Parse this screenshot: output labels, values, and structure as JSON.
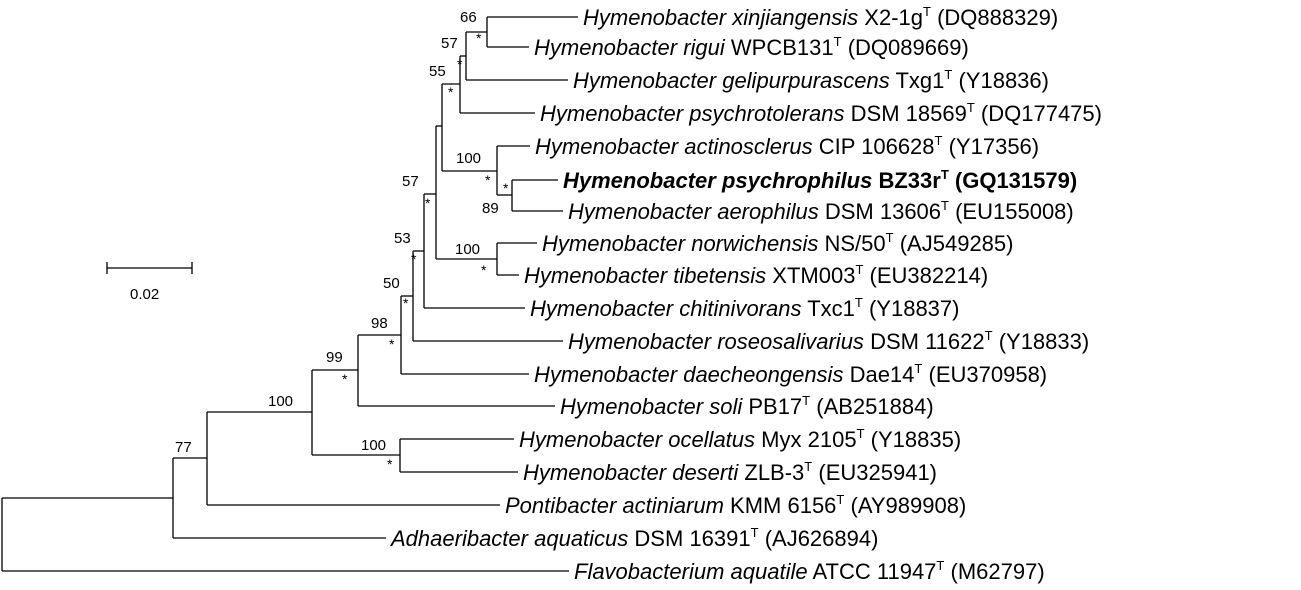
{
  "scale_bar": {
    "label": "0.02"
  },
  "tips": [
    {
      "genus": "Hymenobacter",
      "species": "xinjiangensis",
      "strain": "X2-1g",
      "type_mark": "T",
      "accession": "(DQ888329)"
    },
    {
      "genus": "Hymenobacter",
      "species": "rigui",
      "strain": "WPCB131",
      "type_mark": "T",
      "accession": "(DQ089669)"
    },
    {
      "genus": "Hymenobacter",
      "species": "gelipurpurascens",
      "strain": "Txg1",
      "type_mark": "T",
      "accession": "(Y18836)"
    },
    {
      "genus": "Hymenobacter",
      "species": "psychrotolerans",
      "strain": "DSM 18569",
      "type_mark": "T",
      "accession": "(DQ177475)"
    },
    {
      "genus": "Hymenobacter",
      "species": "actinosclerus",
      "strain": "CIP 106628",
      "type_mark": "T",
      "accession": "(Y17356)"
    },
    {
      "genus": "Hymenobacter",
      "species": "psychrophilus",
      "strain": "BZ33r",
      "type_mark": "T",
      "accession": "(GQ131579)",
      "bold": true
    },
    {
      "genus": "Hymenobacter",
      "species": "aerophilus",
      "strain": "DSM 13606",
      "type_mark": "T",
      "accession": "(EU155008)"
    },
    {
      "genus": "Hymenobacter",
      "species": "norwichensis",
      "strain": "NS/50",
      "type_mark": "T",
      "accession": "(AJ549285)"
    },
    {
      "genus": "Hymenobacter",
      "species": "tibetensis",
      "strain": "XTM003",
      "type_mark": "T",
      "accession": "(EU382214)"
    },
    {
      "genus": "Hymenobacter",
      "species": "chitinivorans",
      "strain": "Txc1",
      "type_mark": "T",
      "accession": "(Y18837)"
    },
    {
      "genus": "Hymenobacter",
      "species": "roseosalivarius",
      "strain": "DSM 11622",
      "type_mark": "T",
      "accession": "(Y18833)"
    },
    {
      "genus": "Hymenobacter",
      "species": "daecheongensis",
      "strain": "Dae14",
      "type_mark": "T",
      "accession": "(EU370958)"
    },
    {
      "genus": "Hymenobacter",
      "species": "soli",
      "strain": "PB17",
      "type_mark": "T",
      "accession": "(AB251884)"
    },
    {
      "genus": "Hymenobacter",
      "species": "ocellatus",
      "strain": "Myx 2105",
      "type_mark": "T",
      "accession": "(Y18835)"
    },
    {
      "genus": "Hymenobacter",
      "species": "deserti",
      "strain": "ZLB-3",
      "type_mark": "T",
      "accession": "(EU325941)"
    },
    {
      "genus": "Pontibacter",
      "species": "actiniarum",
      "strain": "KMM 6156",
      "type_mark": "T",
      "accession": "(AY989908)"
    },
    {
      "genus": "Adhaeribacter",
      "species": "aquaticus",
      "strain": "DSM 16391",
      "type_mark": "T",
      "accession": "(AJ626894)"
    },
    {
      "genus": "Flavobacterium",
      "species": "aquatile",
      "strain": "ATCC 11947",
      "type_mark": "T",
      "accession": "(M62797)"
    }
  ],
  "bootstrap": [
    "66",
    "57",
    "55",
    "100",
    "89",
    "57",
    "100",
    "53",
    "50",
    "98",
    "99",
    "100",
    "100",
    "77"
  ],
  "star_mark": "*"
}
